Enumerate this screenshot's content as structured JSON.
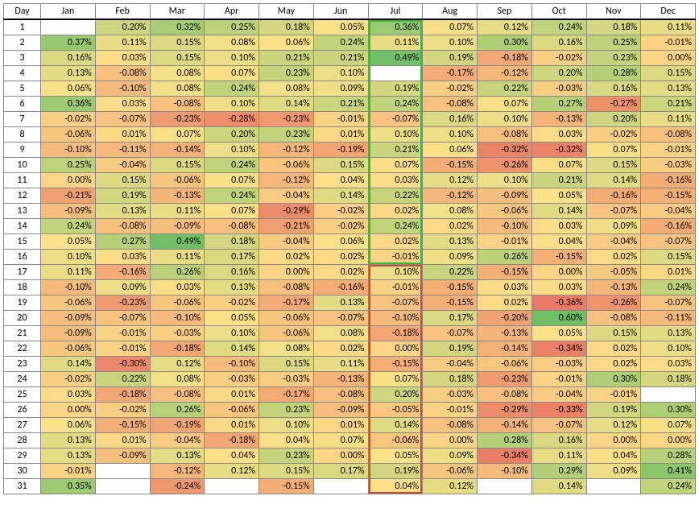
{
  "heatmap": {
    "type": "heatmap",
    "title": "",
    "day_header": "Day",
    "months": [
      "Jan",
      "Feb",
      "Mar",
      "Apr",
      "May",
      "Jun",
      "Jul",
      "Aug",
      "Sep",
      "Oct",
      "Nov",
      "Dec"
    ],
    "days": [
      1,
      2,
      3,
      4,
      5,
      6,
      7,
      8,
      9,
      10,
      11,
      12,
      13,
      14,
      15,
      16,
      17,
      18,
      19,
      20,
      21,
      22,
      23,
      24,
      25,
      26,
      27,
      28,
      29,
      30,
      31
    ],
    "cell_format": "percent_2dp",
    "font_size_pt": 9,
    "background_color": "#ffffff",
    "grid_color": "#888888",
    "border_color": "#000000",
    "highlight_boxes": [
      {
        "month": "Jul",
        "day_from": 1,
        "day_to": 16,
        "color": "#2bbf3a"
      },
      {
        "month": "Jul",
        "day_from": 17,
        "day_to": 31,
        "color": "#d04a35"
      }
    ],
    "color_scale": {
      "min": -0.4,
      "mid": 0.05,
      "max": 0.5,
      "min_color": "#e8705f",
      "mid_color": "#fde18a",
      "max_color": "#6ebf66",
      "empty_color": "#ffffff"
    },
    "data": [
      [
        null,
        0.2,
        0.32,
        0.25,
        0.18,
        0.05,
        0.36,
        0.07,
        0.12,
        0.24,
        0.18,
        0.11
      ],
      [
        0.37,
        0.11,
        0.15,
        0.08,
        0.06,
        0.24,
        0.11,
        0.1,
        0.3,
        0.16,
        0.25,
        -0.01
      ],
      [
        0.16,
        0.03,
        0.15,
        0.1,
        0.21,
        0.21,
        0.49,
        0.19,
        -0.18,
        -0.02,
        0.23,
        0.0
      ],
      [
        0.13,
        -0.08,
        0.08,
        0.07,
        0.23,
        0.1,
        null,
        -0.17,
        -0.12,
        0.2,
        0.28,
        0.15
      ],
      [
        0.06,
        -0.1,
        0.08,
        0.24,
        0.08,
        0.09,
        0.19,
        -0.02,
        0.22,
        -0.03,
        0.16,
        0.13
      ],
      [
        0.36,
        0.03,
        -0.08,
        0.1,
        0.14,
        0.21,
        0.24,
        -0.08,
        0.07,
        0.27,
        -0.27,
        0.21
      ],
      [
        -0.02,
        -0.07,
        -0.23,
        -0.28,
        -0.23,
        -0.01,
        -0.07,
        0.16,
        0.1,
        -0.13,
        0.2,
        0.11
      ],
      [
        -0.06,
        0.01,
        0.07,
        0.2,
        0.23,
        0.01,
        0.1,
        0.1,
        -0.08,
        0.03,
        -0.02,
        -0.08
      ],
      [
        -0.1,
        -0.11,
        -0.14,
        0.1,
        -0.12,
        -0.19,
        0.21,
        0.06,
        -0.32,
        -0.32,
        0.07,
        -0.01
      ],
      [
        0.25,
        -0.04,
        0.15,
        0.24,
        -0.06,
        0.15,
        0.07,
        -0.15,
        -0.26,
        0.07,
        0.15,
        -0.03
      ],
      [
        0.0,
        0.15,
        -0.06,
        0.07,
        -0.12,
        0.04,
        0.03,
        0.12,
        0.1,
        0.21,
        0.14,
        -0.16
      ],
      [
        -0.21,
        0.19,
        -0.13,
        0.24,
        -0.04,
        0.14,
        0.22,
        -0.12,
        -0.09,
        0.05,
        -0.16,
        -0.15
      ],
      [
        -0.09,
        0.13,
        0.11,
        0.07,
        -0.29,
        -0.02,
        0.02,
        0.08,
        -0.06,
        0.14,
        -0.07,
        -0.04
      ],
      [
        0.24,
        -0.08,
        -0.09,
        -0.08,
        -0.21,
        -0.02,
        0.24,
        0.02,
        -0.1,
        0.03,
        0.09,
        -0.16
      ],
      [
        0.05,
        0.27,
        0.49,
        0.18,
        -0.04,
        0.06,
        0.02,
        0.13,
        -0.01,
        0.04,
        -0.04,
        -0.07
      ],
      [
        0.1,
        0.03,
        0.11,
        0.17,
        0.02,
        0.02,
        -0.01,
        0.09,
        0.26,
        -0.15,
        0.02,
        0.15
      ],
      [
        0.11,
        -0.16,
        0.26,
        0.16,
        0.0,
        0.02,
        0.1,
        0.22,
        -0.15,
        0.0,
        -0.05,
        0.01
      ],
      [
        -0.1,
        0.09,
        0.03,
        0.13,
        -0.08,
        -0.16,
        -0.01,
        -0.15,
        0.03,
        0.03,
        -0.13,
        0.24
      ],
      [
        -0.06,
        -0.23,
        -0.06,
        -0.02,
        -0.17,
        0.13,
        -0.07,
        -0.15,
        0.02,
        -0.36,
        -0.26,
        -0.07
      ],
      [
        -0.09,
        -0.07,
        -0.1,
        0.05,
        -0.06,
        -0.07,
        -0.1,
        0.17,
        -0.2,
        0.6,
        -0.08,
        -0.11
      ],
      [
        -0.09,
        -0.01,
        -0.03,
        0.1,
        -0.06,
        0.08,
        -0.18,
        -0.07,
        -0.13,
        0.05,
        0.15,
        0.13
      ],
      [
        -0.06,
        -0.01,
        -0.18,
        0.14,
        0.08,
        0.02,
        0.0,
        0.19,
        -0.14,
        -0.34,
        0.02,
        0.1
      ],
      [
        0.14,
        -0.3,
        0.12,
        -0.1,
        0.15,
        0.11,
        -0.15,
        -0.04,
        -0.06,
        -0.03,
        0.02,
        0.03
      ],
      [
        -0.02,
        0.22,
        0.08,
        -0.03,
        -0.03,
        -0.13,
        0.07,
        0.18,
        -0.23,
        -0.01,
        0.3,
        0.18
      ],
      [
        0.03,
        -0.18,
        -0.08,
        0.01,
        -0.17,
        -0.08,
        0.2,
        -0.03,
        -0.08,
        -0.04,
        -0.01,
        null
      ],
      [
        0.0,
        -0.02,
        0.26,
        -0.06,
        0.23,
        -0.09,
        -0.05,
        -0.01,
        -0.29,
        -0.33,
        0.19,
        0.3
      ],
      [
        0.06,
        -0.15,
        -0.19,
        0.01,
        0.1,
        0.01,
        0.14,
        -0.08,
        -0.14,
        -0.07,
        0.12,
        0.07
      ],
      [
        0.13,
        0.01,
        -0.04,
        -0.18,
        0.04,
        0.07,
        -0.06,
        0.0,
        0.28,
        0.16,
        0.0,
        0.0
      ],
      [
        0.13,
        -0.09,
        0.13,
        0.04,
        0.23,
        0.0,
        0.05,
        0.09,
        -0.34,
        0.11,
        0.04,
        0.28
      ],
      [
        -0.01,
        null,
        -0.12,
        0.12,
        0.15,
        0.17,
        0.19,
        -0.06,
        -0.1,
        0.29,
        0.09,
        0.41
      ],
      [
        0.35,
        null,
        -0.24,
        null,
        -0.15,
        null,
        0.04,
        0.12,
        null,
        0.14,
        null,
        0.24
      ]
    ]
  }
}
